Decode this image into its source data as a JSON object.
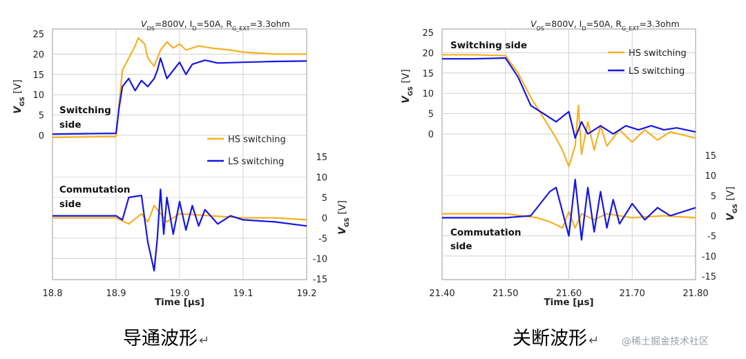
{
  "chart_data": [
    {
      "type": "line",
      "title": "VDS=800V,  ID=50A, RG_EXT=3.3ohm",
      "title_parts": {
        "v": "V",
        "v_sub": "DS",
        "v_val": "=800V,  I",
        "i_sub": "D",
        "i_val": "=50A, R",
        "r_sub": "G_EXT",
        "r_val": "=3.3ohm"
      },
      "xlabel": "Time [µs]",
      "xlim": [
        18.8,
        19.2
      ],
      "x_ticks": [
        "18.8",
        "18.9",
        "19.0",
        "19.1",
        "19.2"
      ],
      "left_ylabel": {
        "v": "V",
        "sub": "GS",
        "unit": "[V]"
      },
      "right_ylabel": {
        "v": "V",
        "sub": "GS",
        "unit": "[V]"
      },
      "left_ylim": [
        0,
        25
      ],
      "left_y_ticks": [
        "25",
        "20",
        "15",
        "10",
        "5",
        "0"
      ],
      "right_ylim": [
        -15,
        15
      ],
      "right_y_ticks": [
        "15",
        "10",
        "5",
        "0",
        "-5",
        "-10",
        "-15"
      ],
      "annotations": {
        "upper": [
          "Switching",
          "side"
        ],
        "lower": [
          "Commutation",
          "side"
        ]
      },
      "legend_placement": "middle-right",
      "grid": true,
      "series": [
        {
          "name": "HS switching",
          "color": "#f4b120",
          "axis": "upper",
          "points": [
            [
              18.8,
              -0.5
            ],
            [
              18.85,
              -0.4
            ],
            [
              18.9,
              -0.3
            ],
            [
              18.905,
              8
            ],
            [
              18.91,
              16
            ],
            [
              18.92,
              19
            ],
            [
              18.93,
              22
            ],
            [
              18.935,
              24
            ],
            [
              18.945,
              22.5
            ],
            [
              18.95,
              19
            ],
            [
              18.96,
              17
            ],
            [
              18.97,
              21
            ],
            [
              18.98,
              23
            ],
            [
              18.99,
              21.5
            ],
            [
              19.0,
              22.5
            ],
            [
              19.01,
              21
            ],
            [
              19.03,
              22
            ],
            [
              19.05,
              21.5
            ],
            [
              19.08,
              21
            ],
            [
              19.1,
              20.5
            ],
            [
              19.15,
              20
            ],
            [
              19.2,
              20
            ]
          ]
        },
        {
          "name": "LS switching",
          "color": "#1515e6",
          "axis": "upper",
          "points": [
            [
              18.8,
              0.3
            ],
            [
              18.85,
              0.4
            ],
            [
              18.9,
              0.5
            ],
            [
              18.905,
              7
            ],
            [
              18.91,
              12
            ],
            [
              18.92,
              14
            ],
            [
              18.93,
              11
            ],
            [
              18.94,
              13.5
            ],
            [
              18.95,
              12
            ],
            [
              18.96,
              14
            ],
            [
              18.965,
              16
            ],
            [
              18.97,
              19
            ],
            [
              18.98,
              14
            ],
            [
              18.99,
              16
            ],
            [
              19.0,
              18
            ],
            [
              19.01,
              15
            ],
            [
              19.02,
              17.5
            ],
            [
              19.04,
              18.5
            ],
            [
              19.06,
              17.8
            ],
            [
              19.1,
              18
            ],
            [
              19.15,
              18.2
            ],
            [
              19.2,
              18.3
            ]
          ]
        },
        {
          "name": "HS switching",
          "color": "#f4b120",
          "axis": "lower",
          "points": [
            [
              18.8,
              0
            ],
            [
              18.85,
              0
            ],
            [
              18.9,
              0
            ],
            [
              18.92,
              -1.5
            ],
            [
              18.94,
              1
            ],
            [
              18.95,
              -1
            ],
            [
              18.96,
              3
            ],
            [
              18.97,
              1
            ],
            [
              18.98,
              -1
            ],
            [
              19.0,
              1
            ],
            [
              19.05,
              0.5
            ],
            [
              19.1,
              0
            ],
            [
              19.15,
              0
            ],
            [
              19.2,
              -0.5
            ]
          ]
        },
        {
          "name": "LS switching",
          "color": "#1515e6",
          "axis": "lower",
          "points": [
            [
              18.8,
              0.5
            ],
            [
              18.85,
              0.5
            ],
            [
              18.9,
              0.5
            ],
            [
              18.91,
              -0.5
            ],
            [
              18.92,
              5
            ],
            [
              18.94,
              5.5
            ],
            [
              18.95,
              -6
            ],
            [
              18.96,
              -13
            ],
            [
              18.965,
              -5
            ],
            [
              18.97,
              7
            ],
            [
              18.975,
              -4
            ],
            [
              18.98,
              5
            ],
            [
              18.99,
              -4
            ],
            [
              19.0,
              4
            ],
            [
              19.01,
              -3
            ],
            [
              19.02,
              3
            ],
            [
              19.03,
              -2
            ],
            [
              19.04,
              2
            ],
            [
              19.06,
              -1.5
            ],
            [
              19.08,
              0.5
            ],
            [
              19.1,
              -0.5
            ],
            [
              19.15,
              -1
            ],
            [
              19.2,
              -2
            ]
          ]
        }
      ]
    },
    {
      "type": "line",
      "title": "VDS=800V,  ID=50A, RG_EXT=3.3ohm",
      "title_parts": {
        "v": "V",
        "v_sub": "DS",
        "v_val": "=800V,  I",
        "i_sub": "D",
        "i_val": "=50A, R",
        "r_sub": "G_EXT",
        "r_val": "=3.3ohm"
      },
      "xlabel": "Time [µs]",
      "xlim": [
        21.4,
        21.8
      ],
      "x_ticks": [
        "21.40",
        "21.50",
        "21.60",
        "21.70",
        "21.80"
      ],
      "left_ylabel": {
        "v": "V",
        "sub": "GS",
        "unit": "[V]"
      },
      "right_ylabel": {
        "v": "V",
        "sub": "GS",
        "unit": "[V]"
      },
      "left_ylim": [
        0,
        25
      ],
      "left_y_ticks": [
        "25",
        "20",
        "15",
        "10",
        "5",
        "0"
      ],
      "right_ylim": [
        -15,
        15
      ],
      "right_y_ticks": [
        "15",
        "10",
        "5",
        "0",
        "-5",
        "-10",
        "-15"
      ],
      "annotations": {
        "upper": [
          "Switching side"
        ],
        "lower": [
          "Commutation",
          "side"
        ]
      },
      "legend_placement": "top-right",
      "grid": true,
      "series": [
        {
          "name": "HS switching",
          "color": "#f4b120",
          "axis": "upper",
          "points": [
            [
              21.4,
              19.5
            ],
            [
              21.45,
              19.5
            ],
            [
              21.5,
              19.3
            ],
            [
              21.52,
              15
            ],
            [
              21.54,
              9
            ],
            [
              21.56,
              4
            ],
            [
              21.58,
              -1
            ],
            [
              21.59,
              -4
            ],
            [
              21.6,
              -8
            ],
            [
              21.61,
              -3
            ],
            [
              21.615,
              7
            ],
            [
              21.62,
              -5
            ],
            [
              21.63,
              3
            ],
            [
              21.64,
              -4
            ],
            [
              21.65,
              2
            ],
            [
              21.66,
              -3
            ],
            [
              21.68,
              1
            ],
            [
              21.7,
              -2
            ],
            [
              21.72,
              1
            ],
            [
              21.74,
              -1.5
            ],
            [
              21.76,
              0.5
            ],
            [
              21.8,
              -1
            ]
          ]
        },
        {
          "name": "LS switching",
          "color": "#1515e6",
          "axis": "upper",
          "points": [
            [
              21.4,
              18.5
            ],
            [
              21.45,
              18.5
            ],
            [
              21.5,
              18.7
            ],
            [
              21.52,
              14
            ],
            [
              21.54,
              7
            ],
            [
              21.56,
              5
            ],
            [
              21.58,
              3
            ],
            [
              21.6,
              5.5
            ],
            [
              21.61,
              -1
            ],
            [
              21.62,
              3
            ],
            [
              21.63,
              0
            ],
            [
              21.65,
              2
            ],
            [
              21.67,
              0
            ],
            [
              21.69,
              2
            ],
            [
              21.71,
              1
            ],
            [
              21.73,
              2
            ],
            [
              21.75,
              1
            ],
            [
              21.77,
              1.5
            ],
            [
              21.8,
              0.5
            ]
          ]
        },
        {
          "name": "HS switching",
          "color": "#f4b120",
          "axis": "lower",
          "points": [
            [
              21.4,
              0.5
            ],
            [
              21.45,
              0.5
            ],
            [
              21.5,
              0.5
            ],
            [
              21.55,
              -0.5
            ],
            [
              21.57,
              -1.5
            ],
            [
              21.59,
              -3
            ],
            [
              21.6,
              1
            ],
            [
              21.61,
              -3
            ],
            [
              21.62,
              0.5
            ],
            [
              21.64,
              -1
            ],
            [
              21.66,
              0.5
            ],
            [
              21.7,
              -0.5
            ],
            [
              21.75,
              0
            ],
            [
              21.8,
              -0.5
            ]
          ]
        },
        {
          "name": "LS switching",
          "color": "#1515e6",
          "axis": "lower",
          "points": [
            [
              21.4,
              -0.5
            ],
            [
              21.45,
              -0.5
            ],
            [
              21.5,
              -0.5
            ],
            [
              21.54,
              0
            ],
            [
              21.57,
              6
            ],
            [
              21.58,
              7
            ],
            [
              21.6,
              -5
            ],
            [
              21.61,
              9
            ],
            [
              21.62,
              -6
            ],
            [
              21.63,
              7
            ],
            [
              21.64,
              -4
            ],
            [
              21.65,
              6
            ],
            [
              21.66,
              -3
            ],
            [
              21.67,
              4
            ],
            [
              21.68,
              -2
            ],
            [
              21.7,
              3
            ],
            [
              21.72,
              -1
            ],
            [
              21.74,
              2
            ],
            [
              21.76,
              0
            ],
            [
              21.8,
              2
            ]
          ]
        }
      ]
    }
  ],
  "captions": {
    "left": "导通波形",
    "right": "关断波形",
    "return_mark": "↵"
  },
  "watermark": "@稀土掘金技术社区"
}
